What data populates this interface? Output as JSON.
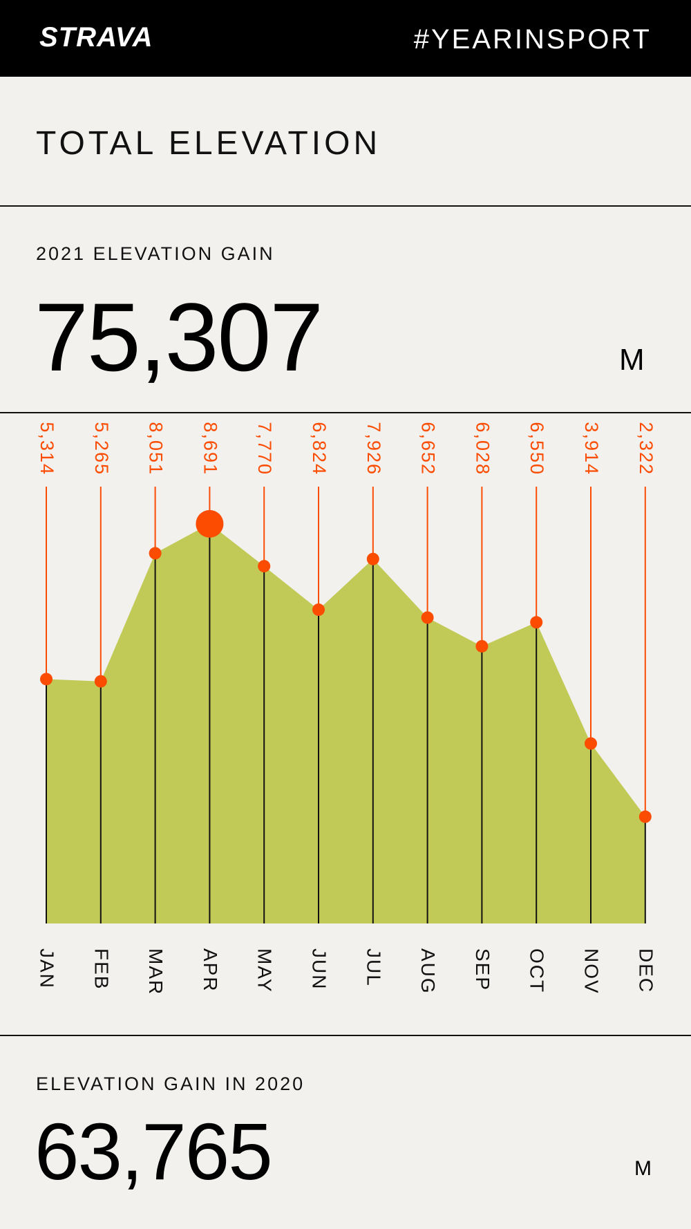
{
  "header": {
    "logo": "STRAVA",
    "hashtag": "#YEARINSPORT"
  },
  "page_title": "TOTAL ELEVATION",
  "current_year": {
    "label": "2021 ELEVATION GAIN",
    "value": "75,307",
    "unit": "M"
  },
  "previous_year": {
    "label": "ELEVATION GAIN IN 2020",
    "value": "63,765",
    "unit": "M"
  },
  "colors": {
    "background": "#f2f1ed",
    "header": "#000000",
    "area_fill": "#c1ca57",
    "accent": "#fc4c02",
    "axis_line": "#111111"
  },
  "chart_data": {
    "type": "area",
    "categories": [
      "JAN",
      "FEB",
      "MAR",
      "APR",
      "MAY",
      "JUN",
      "JUL",
      "AUG",
      "SEP",
      "OCT",
      "NOV",
      "DEC"
    ],
    "values": [
      5314,
      5265,
      8051,
      8691,
      7770,
      6824,
      7926,
      6652,
      6028,
      6550,
      3914,
      2322
    ],
    "value_labels": [
      "5,314",
      "5,265",
      "8,051",
      "8,691",
      "7,770",
      "6,824",
      "7,926",
      "6,652",
      "6,028",
      "6,550",
      "3,914",
      "2,322"
    ],
    "highlight": "APR",
    "ylim": [
      0,
      9500
    ],
    "grid": false,
    "title": "",
    "xlabel": "",
    "ylabel": ""
  }
}
